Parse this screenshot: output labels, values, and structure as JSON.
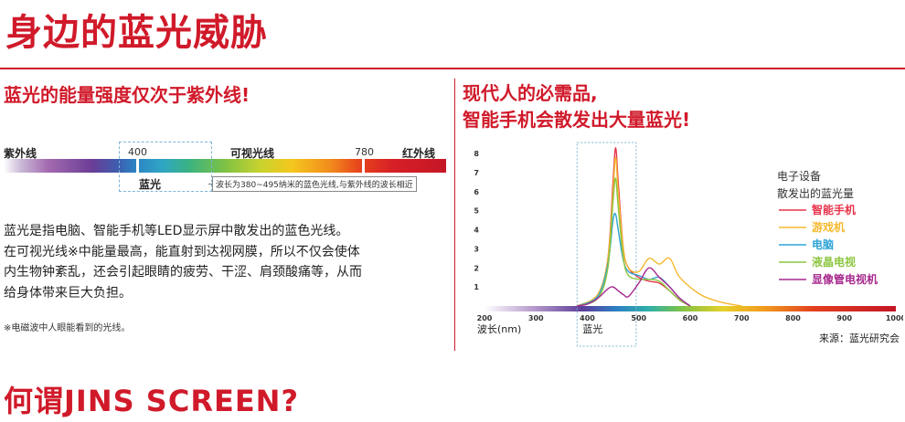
{
  "page": {
    "title": "身边的蓝光威胁",
    "bottom_heading": "何谓JINS SCREEN?"
  },
  "left": {
    "heading": "蓝光的能量强度仅次于紫外线!",
    "spectrum": {
      "uv_label": "紫外线",
      "visible_label": "可视光线",
      "ir_label": "红外线",
      "start_nm": "400",
      "end_nm": "780",
      "blue_label": "蓝光",
      "range_note": "波长为380~495纳米的蓝色光线,与紫外线的波长相近"
    },
    "paragraph_lines": [
      "蓝光是指电脑、智能手机等LED显示屏中散发出的蓝色光线。",
      "在可视光线※中能量最高，能直射到达视网膜，所以不仅会使体",
      "内生物钟紊乱，还会引起眼睛的疲劳、干涩、肩颈酸痛等，从而",
      "给身体带来巨大负担。"
    ],
    "footnote": "※电磁波中人眼能看到的光线。"
  },
  "right": {
    "heading_line1": "现代人的必需品,",
    "heading_line2": "智能手机会散发出大量蓝光!"
  },
  "chart_data": {
    "type": "line",
    "title": "",
    "xlabel": "波长(nm)",
    "ylabel": "",
    "xlim": [
      200,
      1000
    ],
    "ylim": [
      0,
      8
    ],
    "x_ticks": [
      "200",
      "300",
      "400",
      "500",
      "600",
      "700",
      "800",
      "900",
      "1000"
    ],
    "y_ticks": [
      "1",
      "2",
      "3",
      "4",
      "5",
      "6",
      "7",
      "8"
    ],
    "highlight_label": "蓝光",
    "highlight_range": [
      380,
      495
    ],
    "legend_title_line1": "电子设备",
    "legend_title_line2": "散发出的蓝光量",
    "legend_position": "right",
    "source": "来源：蓝光研究会",
    "series": [
      {
        "name": "智能手机",
        "color": "#e8334a",
        "x": [
          380,
          420,
          440,
          450,
          455,
          460,
          470,
          480,
          500,
          520,
          540,
          560,
          580,
          600
        ],
        "y": [
          0,
          0.5,
          2.5,
          6.5,
          8.3,
          6.5,
          3,
          2,
          1.5,
          1.3,
          1.2,
          0.8,
          0.3,
          0
        ]
      },
      {
        "name": "游戏机",
        "color": "#f5b82e",
        "x": [
          380,
          420,
          440,
          450,
          455,
          460,
          470,
          480,
          500,
          520,
          540,
          560,
          580,
          620,
          660,
          700
        ],
        "y": [
          0,
          0.6,
          2.5,
          6,
          7.8,
          6,
          3,
          2,
          1.8,
          2.5,
          2.2,
          2.5,
          1.5,
          0.6,
          0.2,
          0
        ]
      },
      {
        "name": "电脑",
        "color": "#2fa4d6",
        "x": [
          380,
          420,
          440,
          450,
          455,
          460,
          470,
          480,
          500,
          520,
          540,
          560,
          580,
          600
        ],
        "y": [
          0,
          0.5,
          2.2,
          4.5,
          4.8,
          4,
          2.4,
          1.8,
          1.6,
          1.4,
          1.5,
          1,
          0.4,
          0
        ]
      },
      {
        "name": "液晶电视",
        "color": "#8cc63f",
        "x": [
          380,
          420,
          440,
          450,
          455,
          460,
          470,
          480,
          500,
          520,
          540,
          560,
          580,
          600
        ],
        "y": [
          0,
          0.4,
          2,
          5.5,
          6.7,
          5.2,
          2.5,
          1.6,
          1.4,
          1.4,
          1.3,
          0.8,
          0.3,
          0
        ]
      },
      {
        "name": "显像管电视机",
        "color": "#a7298e",
        "x": [
          380,
          400,
          420,
          440,
          450,
          460,
          470,
          480,
          500,
          520,
          540,
          560,
          580,
          600
        ],
        "y": [
          0,
          0.1,
          0.4,
          0.9,
          1,
          0.8,
          0.6,
          0.5,
          1.2,
          2,
          1.5,
          1,
          0.4,
          0
        ]
      }
    ]
  }
}
